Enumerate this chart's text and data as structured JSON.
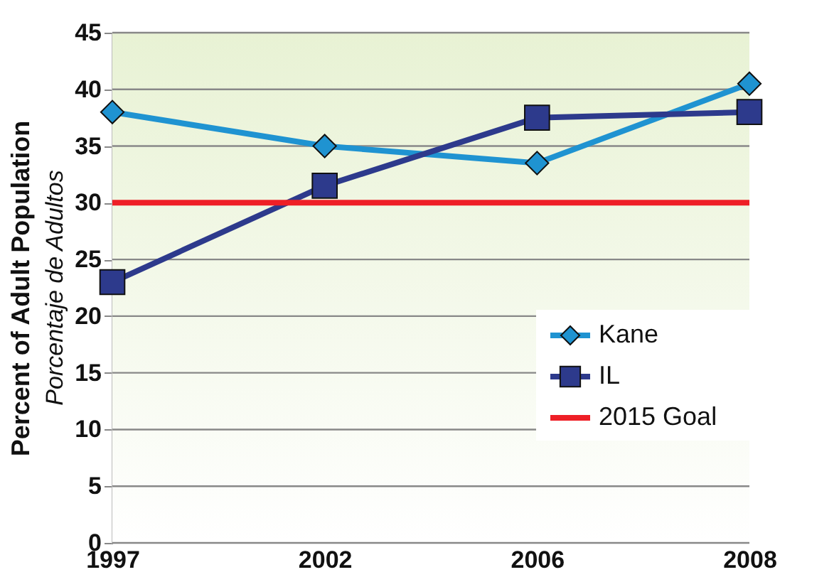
{
  "chart_data": {
    "type": "line",
    "ylabel": "Percent of Adult Population",
    "annotations": [
      "Porcentaje de Adultos"
    ],
    "categories": [
      "1997",
      "2002",
      "2006",
      "2008"
    ],
    "series": [
      {
        "name": "Kane",
        "color": "#1f93d1",
        "marker": "diamond",
        "values": [
          38,
          35,
          33.5,
          40.5
        ]
      },
      {
        "name": "IL",
        "color": "#2d3a8c",
        "marker": "square",
        "values": [
          23,
          31.5,
          37.5,
          38
        ]
      }
    ],
    "ref_lines": [
      {
        "axis": "y",
        "value": 30,
        "label": "2015 Goal",
        "color": "#ee1f26"
      }
    ],
    "ylim": [
      0,
      45
    ],
    "yticks": [
      0,
      5,
      10,
      15,
      20,
      25,
      30,
      35,
      40,
      45
    ],
    "grid": "y",
    "legend": "bottom right"
  }
}
